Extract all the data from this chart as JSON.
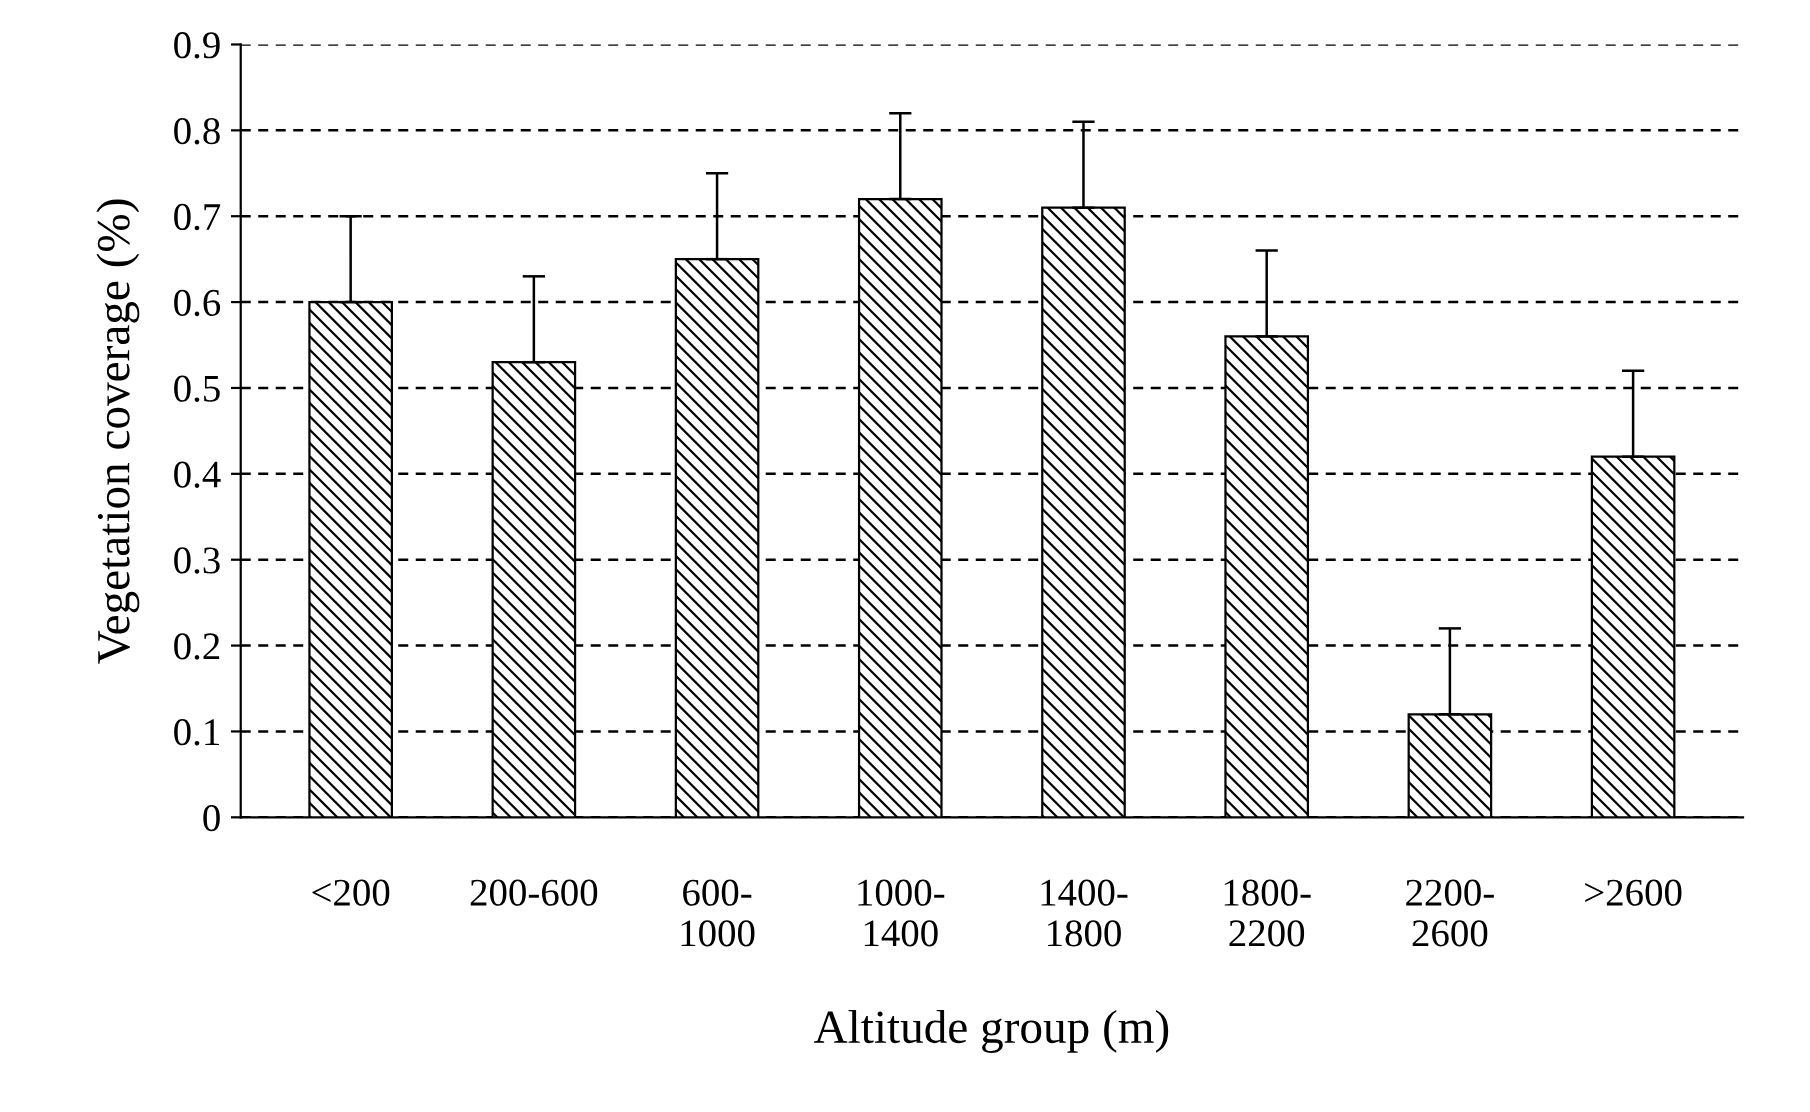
{
  "chart_data": {
    "type": "bar",
    "xlabel": "Altitude group (m)",
    "ylabel": "Vegetation coverage (%)",
    "categories": [
      "<200",
      "200-600",
      "600-\n1000",
      "1000-\n1400",
      "1400-\n1800",
      "1800-\n2200",
      "2200-\n2600",
      ">2600"
    ],
    "values": [
      0.6,
      0.53,
      0.65,
      0.72,
      0.71,
      0.56,
      0.12,
      0.42
    ],
    "errors": [
      [
        0.6,
        0.7
      ],
      [
        0.53,
        0.63
      ],
      [
        0.65,
        0.75
      ],
      [
        0.72,
        0.82
      ],
      [
        0.71,
        0.81
      ],
      [
        0.56,
        0.66
      ],
      [
        0.12,
        0.22
      ],
      [
        0.42,
        0.52
      ]
    ],
    "color": "#000000",
    "ylim": [
      0,
      0.9
    ],
    "yticks": [
      {
        "value": 0,
        "label": "0"
      },
      0.1,
      0.2,
      0.3,
      0.4,
      0.5,
      0.6,
      0.7,
      0.8,
      0.9
    ],
    "grid": "y",
    "line_style": "dashed"
  }
}
